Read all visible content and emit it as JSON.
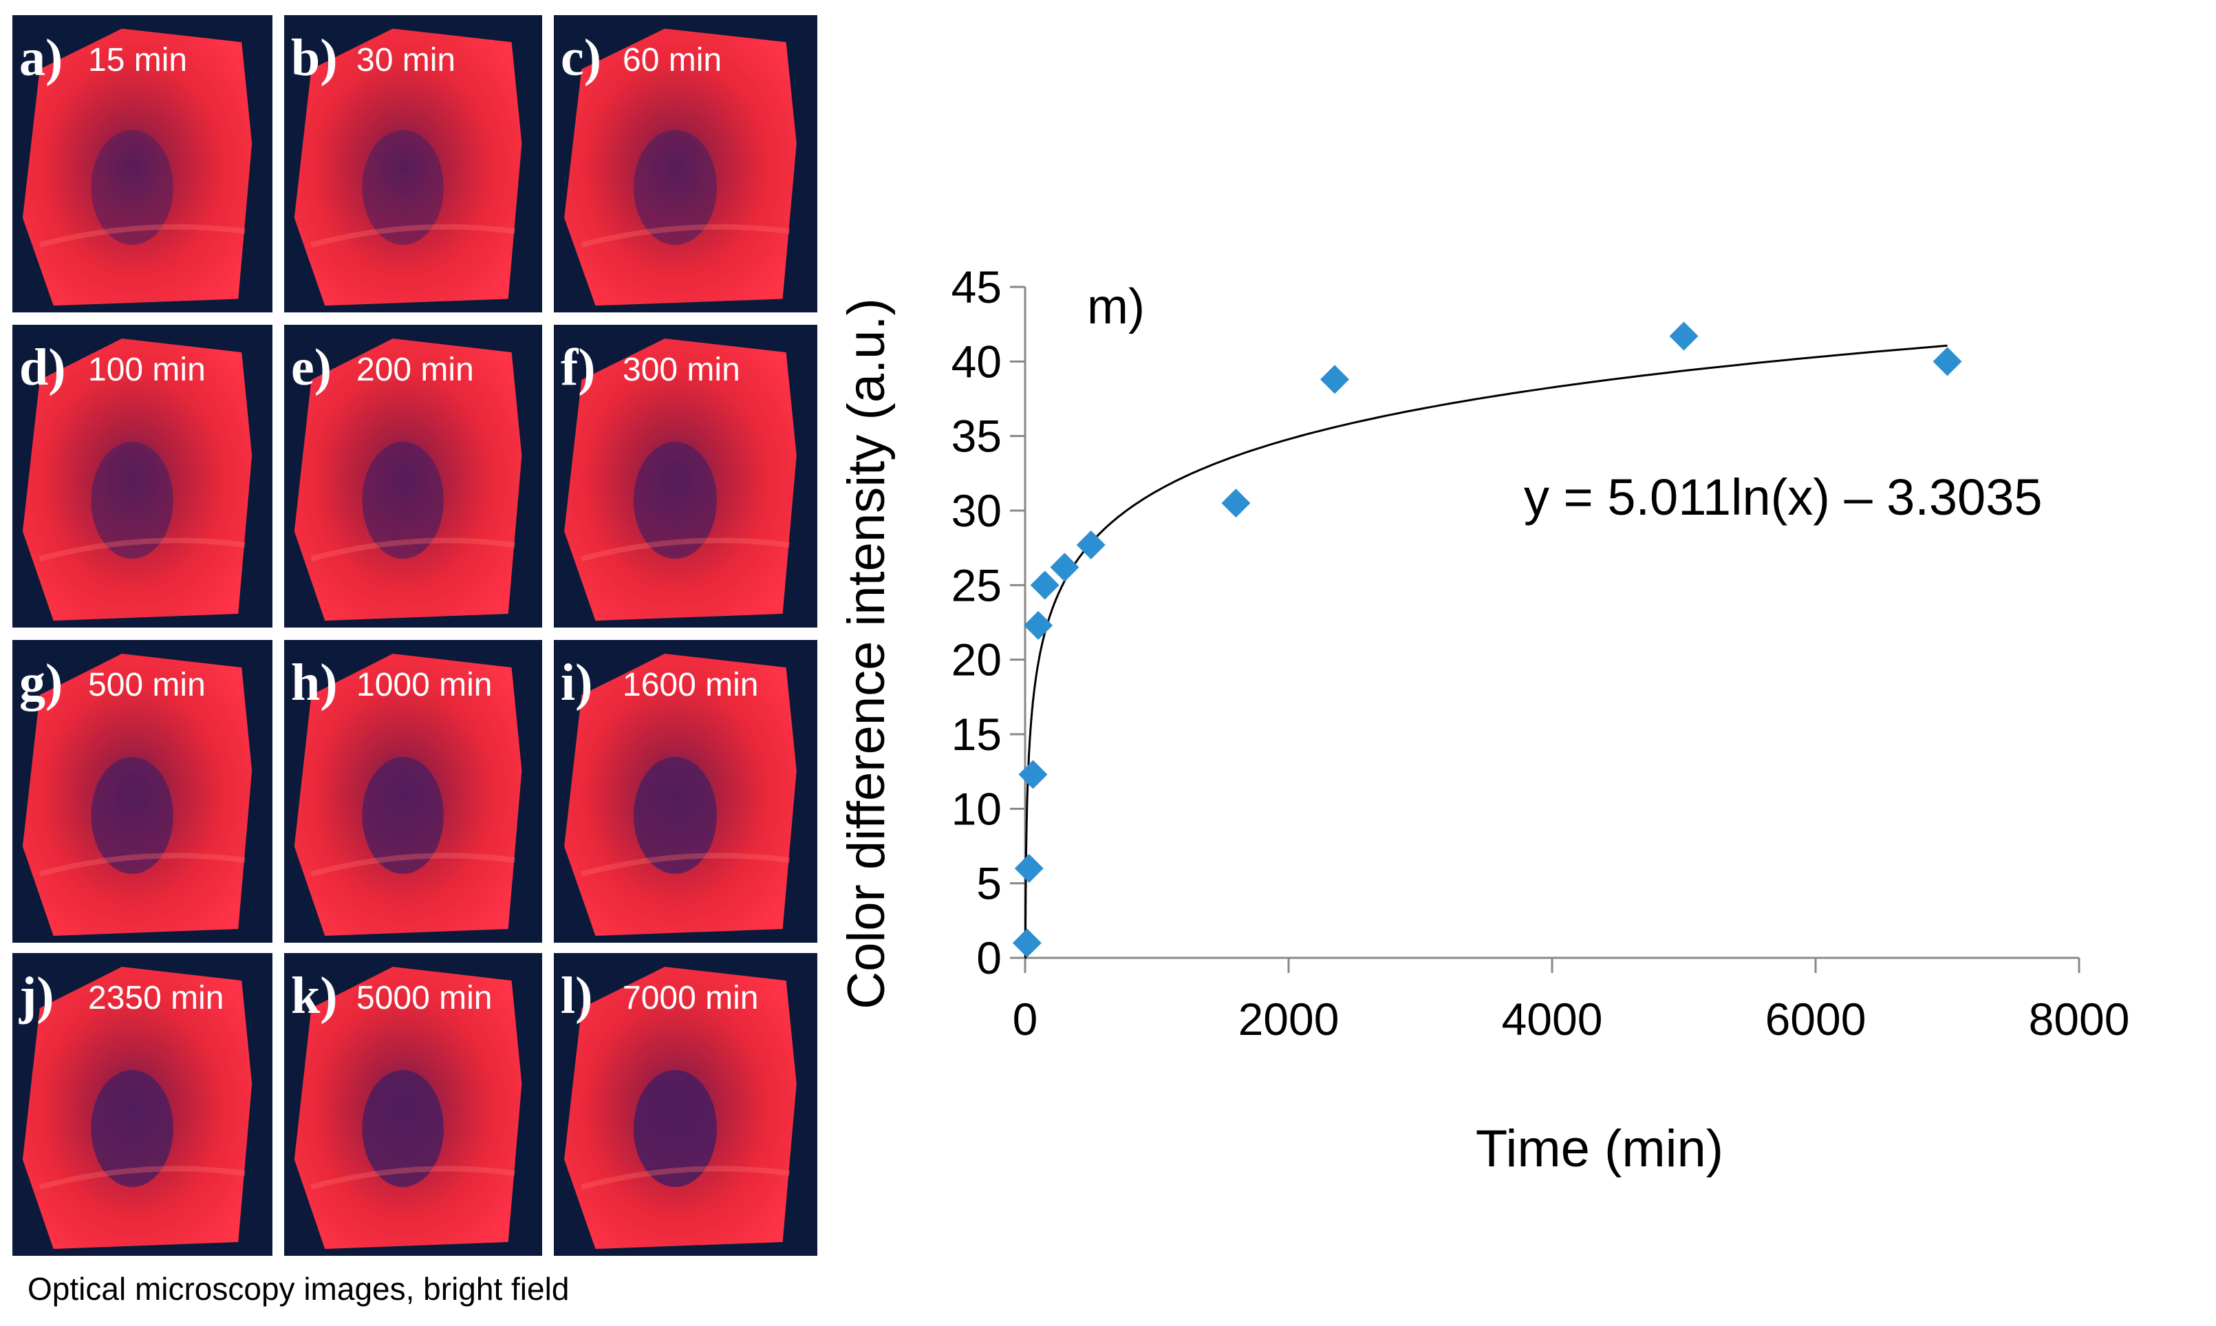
{
  "tiles": [
    {
      "letter": "a)",
      "time": "15 min"
    },
    {
      "letter": "b)",
      "time": "30 min"
    },
    {
      "letter": "c)",
      "time": "60 min"
    },
    {
      "letter": "d)",
      "time": "100 min"
    },
    {
      "letter": "e)",
      "time": "200 min"
    },
    {
      "letter": "f)",
      "time": "300 min"
    },
    {
      "letter": "g)",
      "time": "500 min"
    },
    {
      "letter": "h)",
      "time": "1000 min"
    },
    {
      "letter": "i)",
      "time": "1600 min"
    },
    {
      "letter": "j)",
      "time": "2350 min"
    },
    {
      "letter": "k)",
      "time": "5000 min"
    },
    {
      "letter": "l)",
      "time": "7000 min"
    }
  ],
  "caption": "Optical microscopy images, bright field",
  "colors": {
    "marker": "#2c8fd2",
    "tile_bg": "#0b1a3a",
    "crystal": "#e8283a"
  },
  "chart_data": {
    "type": "scatter",
    "panel_label": "m)",
    "xlabel": "Time (min)",
    "ylabel": "Color difference intensity (a.u.)",
    "xlim": [
      0,
      8000
    ],
    "ylim": [
      0,
      45
    ],
    "xticks": [
      0,
      2000,
      4000,
      6000,
      8000
    ],
    "yticks": [
      0,
      5,
      10,
      15,
      20,
      25,
      30,
      35,
      40,
      45
    ],
    "x": [
      15,
      30,
      60,
      100,
      150,
      300,
      500,
      1600,
      2350,
      5000,
      7000
    ],
    "y": [
      1,
      6,
      12.3,
      22.3,
      25,
      26.2,
      27.7,
      30.5,
      38.8,
      41.7,
      40
    ],
    "trendline": {
      "type": "log",
      "a": 5.011,
      "b": -3.3035,
      "x_from": 1,
      "x_to": 7000
    },
    "equation": "y = 5.011ln(x) – 3.3035"
  }
}
